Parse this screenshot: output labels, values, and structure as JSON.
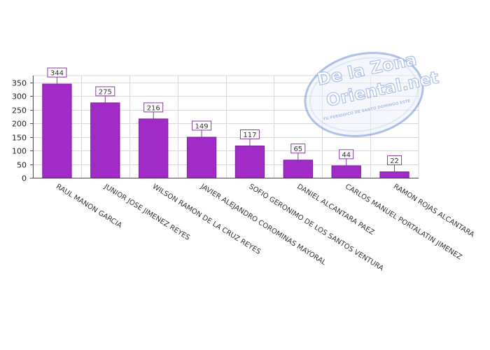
{
  "colors": {
    "bar": "#a12bc7",
    "bar_edge": "#7c1f9c",
    "grid": "#d9d9d9",
    "label_border": "#8a3aa6",
    "watermark": "#6f8fd6"
  },
  "watermark": {
    "line1": "De la Zona",
    "line2": "Oriental.net",
    "tagline": "TU PERIODICO DE SANTO DOMINGO ESTE"
  },
  "chart_data": {
    "type": "bar",
    "categories": [
      "RAUL MANON GARCIA",
      "JUNIOR JOSE JIMENEZ REYES",
      "WILSON RAMON DE LA CRUZ REYES",
      "JAVIER ALEJANDRO COROMINAS MAYORAL",
      "SOFIO GERONIMO DE LOS SANTOS VENTURA",
      "DANIEL ALCANTARA PAEZ",
      "CARLOS MANUEL PORTALATIN JIMENEZ",
      "RAMON ROJAS ALCANTARA"
    ],
    "values": [
      344,
      275,
      216,
      149,
      117,
      65,
      44,
      22
    ],
    "ylim": [
      0,
      375
    ],
    "yticks": [
      0,
      50,
      100,
      150,
      200,
      250,
      300,
      350
    ],
    "grid": true,
    "data_labels": true
  }
}
